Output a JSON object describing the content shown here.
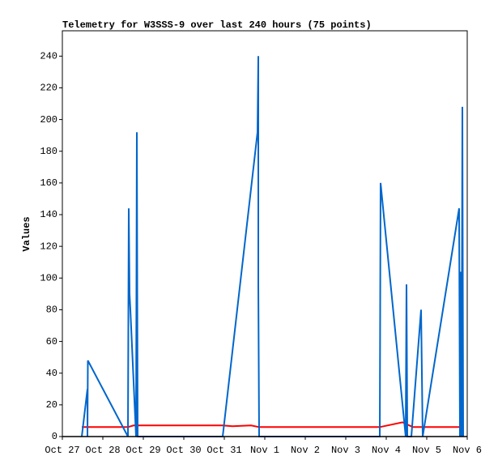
{
  "chart_data": {
    "type": "line",
    "title": "Telemetry for W3SSS-9 over last 240 hours (75 points)",
    "y_label": "Values",
    "xlim": [
      0,
      10
    ],
    "xticks": [
      {
        "value": 0,
        "label": "Oct 27"
      },
      {
        "value": 1,
        "label": "Oct 28"
      },
      {
        "value": 2,
        "label": "Oct 29"
      },
      {
        "value": 3,
        "label": "Oct 30"
      },
      {
        "value": 4,
        "label": "Oct 31"
      },
      {
        "value": 5,
        "label": "Nov 1"
      },
      {
        "value": 6,
        "label": "Nov 2"
      },
      {
        "value": 7,
        "label": "Nov 3"
      },
      {
        "value": 8,
        "label": "Nov 4"
      },
      {
        "value": 9,
        "label": "Nov 5"
      },
      {
        "value": 10,
        "label": "Nov 6"
      }
    ],
    "ylim": [
      0,
      256
    ],
    "yticks": [
      0,
      20,
      40,
      60,
      80,
      100,
      120,
      140,
      160,
      180,
      200,
      220,
      240
    ],
    "series": [
      {
        "color": "#ff0000",
        "x": [
          0.48,
          1.62,
          1.76,
          3.96,
          4.2,
          4.66,
          4.86,
          7.84,
          8.4,
          8.66,
          9.9
        ],
        "values": [
          6,
          6,
          7,
          7,
          6.5,
          7,
          6,
          6,
          9,
          6,
          6
        ]
      },
      {
        "color": "#0066cc",
        "x": [
          0.48,
          0.62,
          0.62,
          0.63,
          1.62,
          1.64,
          1.66,
          1.68,
          1.82,
          1.84,
          1.86,
          3.96,
          4.82,
          4.84,
          4.84,
          4.86,
          7.84,
          7.86,
          8.48,
          8.5,
          8.52,
          8.62,
          8.86,
          8.9,
          9.8,
          9.82,
          9.84,
          9.86,
          9.88,
          9.9
        ],
        "values": [
          0,
          30,
          0,
          48,
          0,
          144,
          90,
          80,
          0,
          192,
          0,
          0,
          192,
          240,
          96,
          0,
          0,
          160,
          0,
          96,
          0,
          0,
          80,
          0,
          144,
          0,
          104,
          0,
          208,
          0
        ]
      }
    ]
  }
}
